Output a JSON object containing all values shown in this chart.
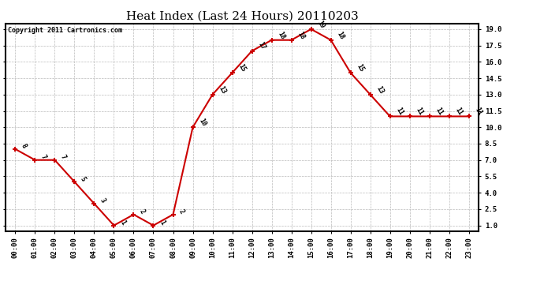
{
  "title": "Heat Index (Last 24 Hours) 20110203",
  "copyright": "Copyright 2011 Cartronics.com",
  "x_labels": [
    "00:00",
    "01:00",
    "02:00",
    "03:00",
    "04:00",
    "05:00",
    "06:00",
    "07:00",
    "08:00",
    "09:00",
    "10:00",
    "11:00",
    "12:00",
    "13:00",
    "14:00",
    "15:00",
    "16:00",
    "17:00",
    "18:00",
    "19:00",
    "20:00",
    "21:00",
    "22:00",
    "23:00"
  ],
  "y_values": [
    8,
    7,
    7,
    5,
    3,
    1,
    2,
    1,
    2,
    10,
    13,
    15,
    17,
    18,
    18,
    19,
    18,
    15,
    13,
    11,
    11,
    11,
    11,
    11
  ],
  "ylim": [
    0.5,
    19.5
  ],
  "yticks": [
    1.0,
    2.5,
    4.0,
    5.5,
    7.0,
    8.5,
    10.0,
    11.5,
    13.0,
    14.5,
    16.0,
    17.5,
    19.0
  ],
  "line_color": "#cc0000",
  "marker_color": "#cc0000",
  "bg_color": "#ffffff",
  "grid_color": "#bbbbbb",
  "title_fontsize": 11,
  "annotation_fontsize": 6,
  "annotation_rotation": -60,
  "tick_fontsize": 6.5,
  "copyright_fontsize": 6
}
